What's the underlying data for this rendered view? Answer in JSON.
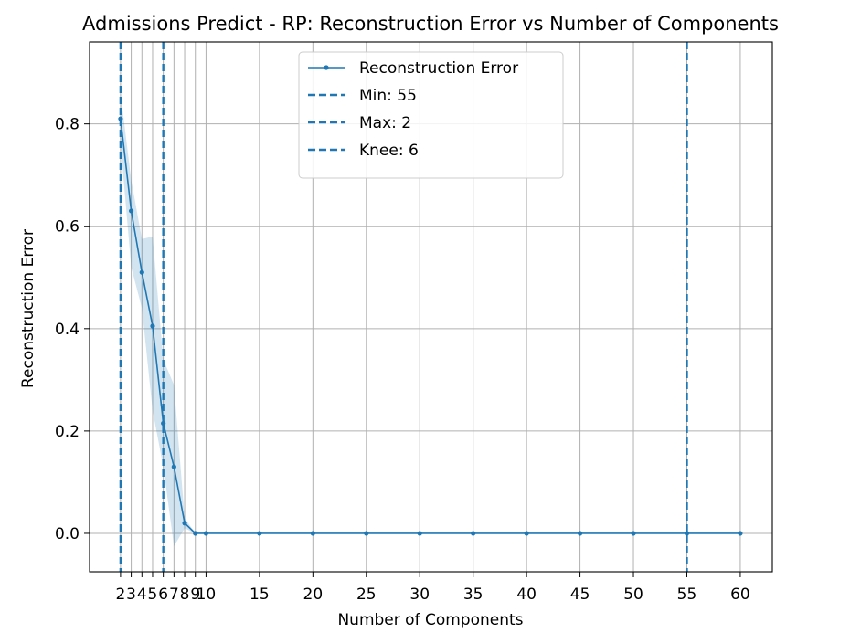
{
  "chart_data": {
    "type": "line",
    "title": "Admissions Predict - RP: Reconstruction Error vs Number of Components",
    "xlabel": "Number of Components",
    "ylabel": "Reconstruction Error",
    "xlim": [
      -0.9,
      63.0
    ],
    "ylim": [
      -0.075,
      0.96
    ],
    "xticks": [
      2,
      3,
      4,
      5,
      6,
      7,
      8,
      9,
      10,
      15,
      20,
      25,
      30,
      35,
      40,
      45,
      50,
      55,
      60
    ],
    "xtick_labels": [
      "2",
      "3",
      "4",
      "5",
      "6",
      "7",
      "8",
      "9",
      "10",
      "15",
      "20",
      "25",
      "30",
      "35",
      "40",
      "45",
      "50",
      "55",
      "60"
    ],
    "yticks": [
      0.0,
      0.2,
      0.4,
      0.6,
      0.8
    ],
    "ytick_labels": [
      "0.0",
      "0.2",
      "0.4",
      "0.6",
      "0.8"
    ],
    "grid": true,
    "legend_position": "top-center",
    "series": [
      {
        "name": "Reconstruction Error",
        "color": "#1f77b4",
        "x": [
          2,
          3,
          4,
          5,
          6,
          7,
          8,
          9,
          10,
          15,
          20,
          25,
          30,
          35,
          40,
          45,
          50,
          55,
          60
        ],
        "y": [
          0.81,
          0.63,
          0.51,
          0.405,
          0.215,
          0.13,
          0.02,
          0.0,
          0.0,
          0.0,
          0.0,
          0.0,
          0.0,
          0.0,
          0.0,
          0.0,
          0.0,
          0.0,
          0.0
        ],
        "band_lower": [
          0.76,
          0.52,
          0.44,
          0.24,
          0.13,
          -0.025,
          0.01,
          0.0,
          0.0,
          0.0,
          0.0,
          0.0,
          0.0,
          0.0,
          0.0,
          0.0,
          0.0,
          0.0,
          0.0
        ],
        "band_upper": [
          0.86,
          0.69,
          0.575,
          0.58,
          0.34,
          0.29,
          0.03,
          0.0,
          0.0,
          0.0,
          0.0,
          0.0,
          0.0,
          0.0,
          0.0,
          0.0,
          0.0,
          0.0,
          0.0
        ]
      }
    ],
    "vlines": [
      {
        "name": "Min: 55",
        "x": 55,
        "color": "#1f77b4",
        "style": "dashed"
      },
      {
        "name": "Max: 2",
        "x": 2,
        "color": "#1f77b4",
        "style": "dashed"
      },
      {
        "name": "Knee: 6",
        "x": 6,
        "color": "#1f77b4",
        "style": "dashed"
      }
    ]
  }
}
